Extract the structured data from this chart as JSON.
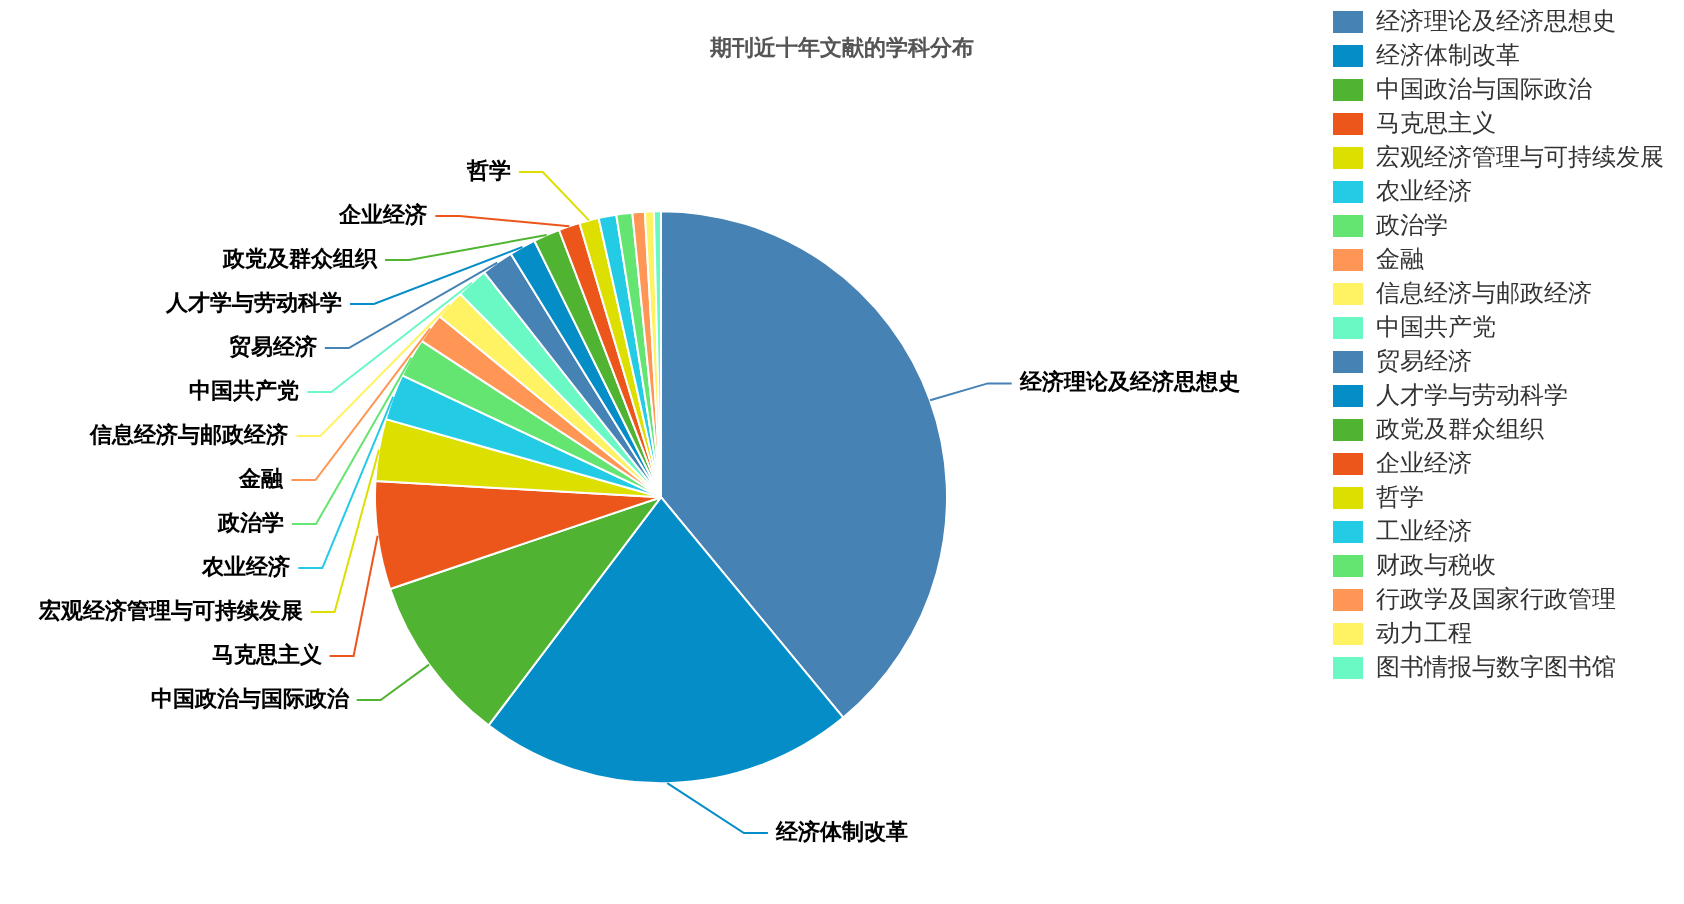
{
  "chart_data": {
    "type": "pie",
    "title": "期刊近十年文献的学科分布",
    "categories": [
      "经济理论及经济思想史",
      "经济体制改革",
      "中国政治与国际政治",
      "马克思主义",
      "宏观经济管理与可持续发展",
      "农业经济",
      "政治学",
      "金融",
      "信息经济与邮政经济",
      "中国共产党",
      "贸易经济",
      "人才学与劳动科学",
      "政党及群众组织",
      "企业经济",
      "哲学",
      "工业经济",
      "财政与税收",
      "行政学及国家行政管理",
      "动力工程",
      "图书情报与数字图书馆"
    ],
    "values": [
      39.0,
      21.3,
      9.5,
      6.1,
      3.5,
      2.6,
      2.2,
      1.7,
      1.7,
      1.8,
      1.8,
      1.5,
      1.5,
      1.2,
      1.1,
      1.0,
      0.9,
      0.7,
      0.5,
      0.4
    ],
    "colors": [
      "#4682b4",
      "#058dc7",
      "#50b432",
      "#ed561b",
      "#dddf00",
      "#24cbe5",
      "#64e572",
      "#ff9655",
      "#fff263",
      "#6af9c4",
      "#4682b4",
      "#058dc7",
      "#50b432",
      "#ed561b",
      "#dddf00",
      "#24cbe5",
      "#64e572",
      "#ff9655",
      "#fff263",
      "#6af9c4"
    ],
    "legend": "right"
  }
}
